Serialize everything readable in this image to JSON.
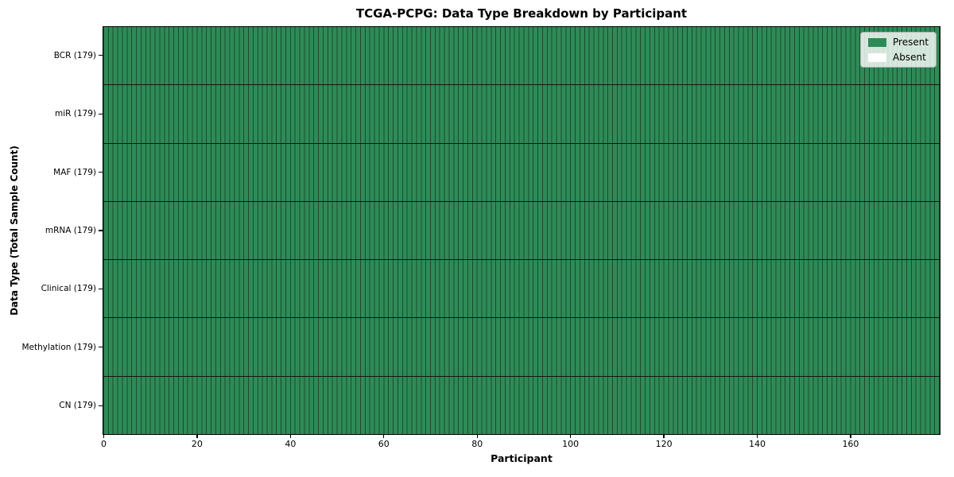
{
  "chart_data": {
    "type": "heatmap",
    "title": "TCGA-PCPG: Data Type Breakdown by Participant",
    "xlabel": "Participant",
    "ylabel": "Data Type (Total Sample Count)",
    "n_participants": 179,
    "xlim": [
      0,
      179
    ],
    "x_ticks": [
      0,
      20,
      40,
      60,
      80,
      100,
      120,
      140,
      160
    ],
    "rows": [
      {
        "label": "BCR (179)",
        "data_type": "BCR",
        "total_samples": 179,
        "present_count": 179,
        "absent_count": 0
      },
      {
        "label": "miR (179)",
        "data_type": "miR",
        "total_samples": 179,
        "present_count": 179,
        "absent_count": 0
      },
      {
        "label": "MAF (179)",
        "data_type": "MAF",
        "total_samples": 179,
        "present_count": 179,
        "absent_count": 0
      },
      {
        "label": "mRNA (179)",
        "data_type": "mRNA",
        "total_samples": 179,
        "present_count": 179,
        "absent_count": 0
      },
      {
        "label": "Clinical (179)",
        "data_type": "Clinical",
        "total_samples": 179,
        "present_count": 179,
        "absent_count": 0
      },
      {
        "label": "Methylation (179)",
        "data_type": "Methylation",
        "total_samples": 179,
        "present_count": 179,
        "absent_count": 0
      },
      {
        "label": "CN (179)",
        "data_type": "CN",
        "total_samples": 179,
        "present_count": 179,
        "absent_count": 0
      }
    ],
    "matrix_note": "every cell is Present (green) for all 179 participants in all 7 data type rows",
    "legend": {
      "position": "upper right",
      "items": [
        {
          "label": "Present",
          "color": "#2e8b57"
        },
        {
          "label": "Absent",
          "color": "#ffffff"
        }
      ]
    },
    "colors": {
      "present": "#2e8b57",
      "absent": "#ffffff",
      "cell_edge": "rgba(0,0,0,0.45)",
      "row_divider": "#141414",
      "spine": "#000000"
    },
    "grid": "per-cell vertical edges and per-row horizontal dividers"
  }
}
